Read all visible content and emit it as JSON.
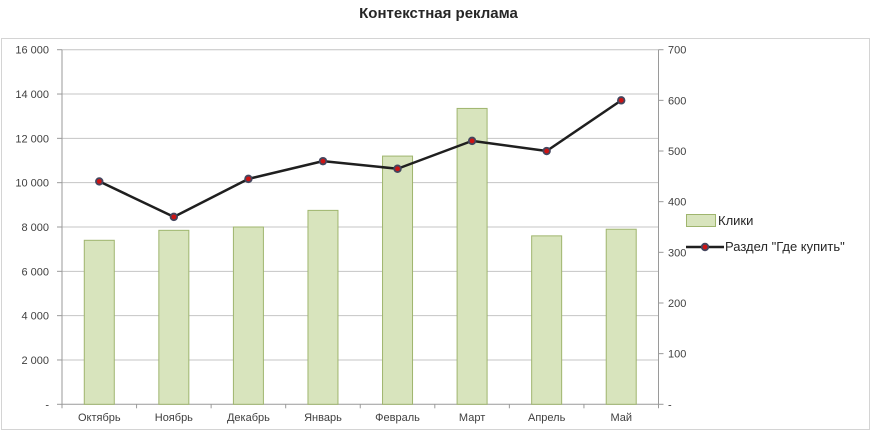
{
  "title": "Контекстная реклама",
  "legend": {
    "bars_label": "Клики",
    "line_label": "Раздел \"Где купить\""
  },
  "colors": {
    "bar_fill": "#d8e4bd",
    "bar_border": "#9fb56e",
    "line": "#1f1f1f",
    "marker_ring": "#44465e",
    "marker_fill": "#cc1414",
    "gridline": "#c4c4c4",
    "axis": "#9a9a9a",
    "tick_text": "#3f3f3f",
    "chart_border": "#d4d4d4",
    "background": "#ffffff"
  },
  "chart_data": {
    "type": "bar",
    "subtype": "combo-bar-line-dual-axis",
    "title": "Контекстная реклама",
    "categories": [
      "Октябрь",
      "Ноябрь",
      "Декабрь",
      "Январь",
      "Февраль",
      "Март",
      "Апрель",
      "Май"
    ],
    "series": [
      {
        "name": "Клики",
        "type": "bar",
        "axis": "left",
        "values": [
          7400,
          7850,
          8000,
          8750,
          11200,
          13350,
          7600,
          7900
        ]
      },
      {
        "name": "Раздел \"Где купить\"",
        "type": "line",
        "axis": "right",
        "values": [
          440,
          370,
          445,
          480,
          465,
          520,
          500,
          600
        ]
      }
    ],
    "left_axis": {
      "min": 0,
      "max": 16000,
      "step": 2000,
      "tick_labels_top_down": [
        "16 000",
        "14 000",
        "12 000",
        "10 000",
        "8 000",
        "6 000",
        "4 000",
        "2 000",
        "-"
      ]
    },
    "right_axis": {
      "min": 0,
      "max": 700,
      "step": 100,
      "tick_labels_top_down": [
        "700",
        "600",
        "500",
        "400",
        "300",
        "200",
        "100",
        "-"
      ]
    },
    "grid": "horizontal",
    "legend_position": "right",
    "xlabel": "",
    "ylabel": ""
  }
}
